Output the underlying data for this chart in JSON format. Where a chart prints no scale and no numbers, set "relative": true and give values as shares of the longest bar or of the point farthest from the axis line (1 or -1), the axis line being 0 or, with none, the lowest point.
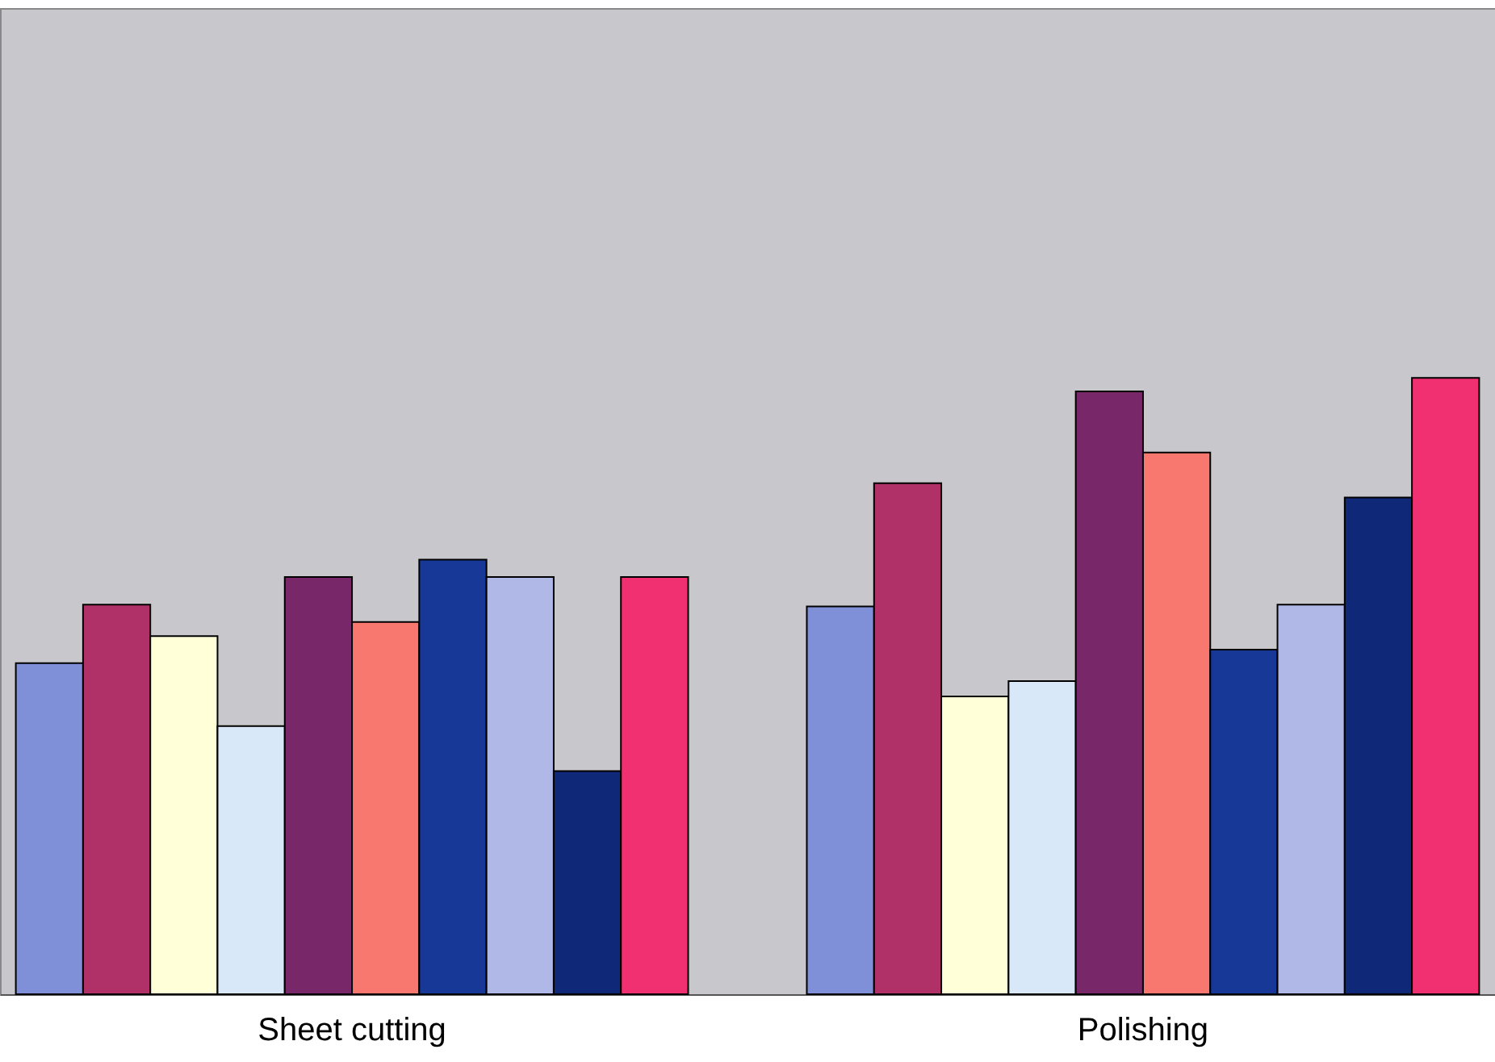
{
  "chart_data": {
    "type": "bar",
    "relative": true,
    "categories": [
      "Sheet cutting",
      "Polishing"
    ],
    "series": [
      {
        "color": "#8090d8",
        "values": [
          0.537,
          0.629
        ]
      },
      {
        "color": "#b03068",
        "values": [
          0.632,
          0.829
        ]
      },
      {
        "color": "#ffffd8",
        "values": [
          0.581,
          0.483
        ]
      },
      {
        "color": "#d8e8f8",
        "values": [
          0.435,
          0.508
        ]
      },
      {
        "color": "#782868",
        "values": [
          0.677,
          0.978
        ]
      },
      {
        "color": "#f87870",
        "values": [
          0.604,
          0.879
        ]
      },
      {
        "color": "#183898",
        "values": [
          0.705,
          0.559
        ]
      },
      {
        "color": "#b0b8e8",
        "values": [
          0.677,
          0.632
        ]
      },
      {
        "color": "#102878",
        "values": [
          0.362,
          0.806
        ]
      },
      {
        "color": "#f03070",
        "values": [
          0.677,
          1.0
        ]
      }
    ],
    "grid": false,
    "legend": false
  }
}
